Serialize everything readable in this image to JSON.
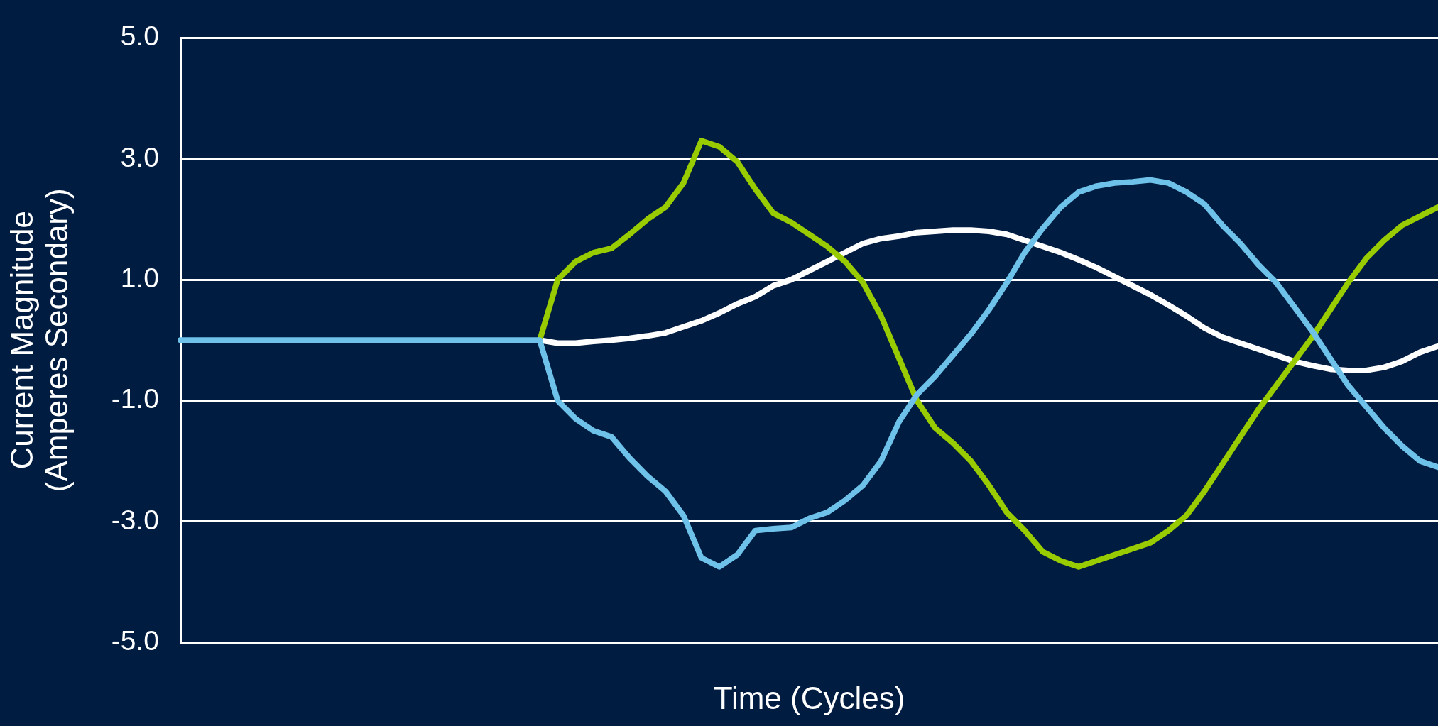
{
  "chart_data": {
    "type": "line",
    "xlabel": "Time (Cycles)",
    "ylabel": "Current Magnitude\n(Amperes Secondary)",
    "categories": [
      null,
      null,
      null,
      null,
      null,
      null,
      null,
      null,
      null,
      null,
      null,
      null,
      null,
      null,
      null,
      null,
      null,
      null,
      null,
      null,
      null,
      null,
      null,
      null,
      null,
      null,
      null,
      null,
      null,
      null,
      null,
      null,
      null,
      null,
      null,
      null,
      null,
      null,
      null,
      null,
      null,
      null,
      null,
      null,
      null,
      null,
      null,
      null,
      null,
      null,
      null,
      null,
      null,
      null,
      null,
      null,
      null,
      null,
      null,
      null,
      null,
      null,
      null,
      null,
      null,
      null,
      null,
      null,
      null,
      null,
      null
    ],
    "ylim": [
      -5,
      5
    ],
    "yticks": [
      {
        "value": -5,
        "label": "-5.0"
      },
      {
        "value": -3,
        "label": "-3.0"
      },
      {
        "value": -1,
        "label": "-1.0"
      },
      {
        "value": 1,
        "label": "1.0"
      },
      {
        "value": 3,
        "label": "3.0"
      },
      {
        "value": 5,
        "label": "5.0"
      }
    ],
    "grid": "y",
    "legend": false,
    "marker": "none",
    "line_style": "solid",
    "tick_labels": "y",
    "series": [
      {
        "color": "#6ec1e8",
        "values": [
          0,
          0,
          0,
          0,
          0,
          0,
          0,
          0,
          0,
          0,
          0,
          0,
          0,
          0,
          0,
          0,
          0,
          0,
          0,
          0,
          0,
          -1.0,
          -1.3,
          -1.5,
          -1.6,
          -1.95,
          -2.25,
          -2.5,
          -2.9,
          -3.6,
          -3.75,
          -3.55,
          -3.15,
          -3.12,
          -3.1,
          -2.95,
          -2.85,
          -2.65,
          -2.4,
          -2.0,
          -1.35,
          -0.9,
          -0.6,
          -0.25,
          0.1,
          0.5,
          0.95,
          1.45,
          1.85,
          2.2,
          2.45,
          2.55,
          2.6,
          2.62,
          2.65,
          2.6,
          2.45,
          2.25,
          1.9,
          1.6,
          1.25,
          0.95,
          0.55,
          0.15,
          -0.3,
          -0.75,
          -1.1,
          -1.45,
          -1.75,
          -2.0,
          -2.1
        ]
      },
      {
        "color": "#99cc00",
        "values": [
          null,
          null,
          null,
          null,
          null,
          null,
          null,
          null,
          null,
          null,
          null,
          null,
          null,
          null,
          null,
          null,
          null,
          null,
          null,
          null,
          0,
          1.0,
          1.3,
          1.45,
          1.52,
          1.75,
          2.0,
          2.2,
          2.6,
          3.3,
          3.2,
          2.95,
          2.5,
          2.1,
          1.95,
          1.75,
          1.55,
          1.3,
          0.95,
          0.4,
          -0.3,
          -1.0,
          -1.45,
          -1.7,
          -2.0,
          -2.4,
          -2.85,
          -3.15,
          -3.5,
          -3.65,
          -3.75,
          -3.65,
          -3.55,
          -3.45,
          -3.35,
          -3.15,
          -2.9,
          -2.5,
          -2.05,
          -1.6,
          -1.15,
          -0.75,
          -0.35,
          0.05,
          0.5,
          0.95,
          1.35,
          1.65,
          1.9,
          2.05,
          2.2
        ]
      },
      {
        "color": "#ffffff",
        "values": [
          null,
          null,
          null,
          null,
          null,
          null,
          null,
          null,
          null,
          null,
          null,
          null,
          null,
          null,
          null,
          null,
          null,
          null,
          null,
          null,
          0,
          -0.05,
          -0.05,
          -0.02,
          0.0,
          0.03,
          0.07,
          0.12,
          0.22,
          0.32,
          0.45,
          0.6,
          0.72,
          0.9,
          1.0,
          1.15,
          1.3,
          1.45,
          1.6,
          1.68,
          1.72,
          1.78,
          1.8,
          1.82,
          1.82,
          1.8,
          1.75,
          1.65,
          1.55,
          1.45,
          1.33,
          1.2,
          1.05,
          0.9,
          0.75,
          0.58,
          0.4,
          0.2,
          0.05,
          -0.05,
          -0.15,
          -0.25,
          -0.35,
          -0.42,
          -0.48,
          -0.5,
          -0.5,
          -0.45,
          -0.35,
          -0.2,
          -0.1
        ]
      }
    ]
  }
}
